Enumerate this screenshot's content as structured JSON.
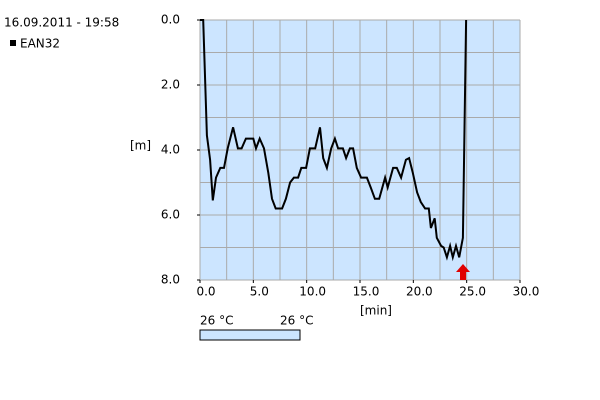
{
  "chart_data": {
    "type": "line",
    "title": "16.09.2011 - 19:58",
    "x_label": "[min]",
    "y_label": "[m]",
    "x": [
      0,
      0.3,
      0.65,
      0.95,
      1.2,
      1.5,
      1.9,
      2.25,
      2.6,
      3.1,
      3.55,
      3.9,
      4.3,
      5,
      5.25,
      5.6,
      6,
      6.4,
      6.75,
      7.1,
      7.7,
      8.05,
      8.45,
      8.8,
      9.2,
      9.5,
      9.95,
      10.3,
      10.8,
      11.25,
      11.55,
      11.9,
      12.3,
      12.65,
      12.95,
      13.4,
      13.7,
      14.05,
      14.35,
      14.7,
      15.1,
      15.65,
      16,
      16.4,
      16.8,
      17.35,
      17.6,
      18.1,
      18.45,
      18.85,
      19.3,
      19.6,
      19.95,
      20.35,
      20.7,
      21.1,
      21.45,
      21.65,
      22,
      22.2,
      22.6,
      22.85,
      23.15,
      23.45,
      23.7,
      24,
      24.3,
      24.65,
      24.95
    ],
    "series": [
      {
        "name": "EAN32",
        "color": "#000000",
        "values": [
          0,
          0,
          3.55,
          4.3,
          5.55,
          4.85,
          4.55,
          4.55,
          3.95,
          3.3,
          3.95,
          3.95,
          3.65,
          3.65,
          3.95,
          3.65,
          3.95,
          4.7,
          5.5,
          5.8,
          5.8,
          5.5,
          5,
          4.85,
          4.85,
          4.55,
          4.55,
          3.95,
          3.95,
          3.3,
          4.25,
          4.55,
          3.95,
          3.65,
          3.95,
          3.95,
          4.25,
          3.95,
          3.95,
          4.55,
          4.85,
          4.85,
          5.15,
          5.5,
          5.5,
          4.85,
          5.15,
          4.55,
          4.55,
          4.85,
          4.3,
          4.25,
          4.7,
          5.3,
          5.6,
          5.8,
          5.8,
          6.4,
          6.1,
          6.7,
          6.95,
          7,
          7.3,
          6.95,
          7.3,
          6.95,
          7.3,
          6.7,
          0
        ]
      }
    ],
    "xlim": [
      0,
      30
    ],
    "ylim": [
      0,
      8
    ],
    "y_inverted": true,
    "xticks": [
      {
        "value": 0,
        "label": "0.0"
      },
      {
        "value": 5,
        "label": "5.0"
      },
      {
        "value": 10,
        "label": "10.0"
      },
      {
        "value": 15,
        "label": "15.0"
      },
      {
        "value": 20,
        "label": "20.0"
      },
      {
        "value": 25,
        "label": "25.0"
      },
      {
        "value": 30,
        "label": "30.0"
      }
    ],
    "yticks": [
      {
        "value": 0,
        "label": "0.0"
      },
      {
        "value": 2,
        "label": "2.0"
      },
      {
        "value": 4,
        "label": "4.0"
      },
      {
        "value": 6,
        "label": "6.0"
      },
      {
        "value": 8,
        "label": "8.0"
      }
    ],
    "xgrid": [
      0,
      2.5,
      5,
      7.5,
      10,
      12.5,
      15,
      17.5,
      20,
      22.5,
      25,
      27.5,
      30
    ],
    "ygrid": [
      0,
      1,
      2,
      3,
      4,
      5,
      6,
      7,
      8
    ],
    "plot_background": "#cce5ff"
  },
  "temperature": {
    "start_label": "26 °C",
    "end_label": "26 °C"
  }
}
